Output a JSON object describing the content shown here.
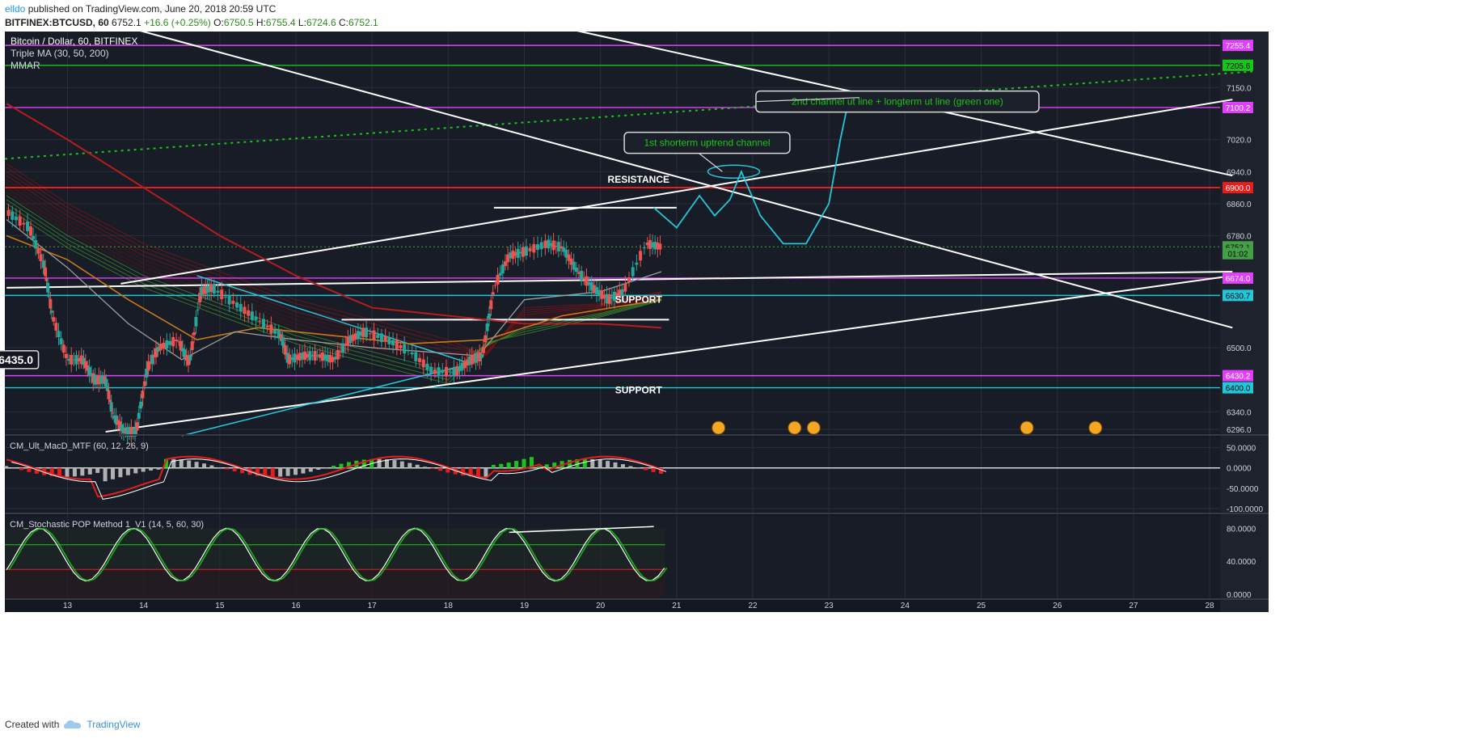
{
  "header": {
    "author": "elldo",
    "published": "published on TradingView.com, June 20, 2018 20:59 UTC",
    "symbol": "BITFINEX:BTCUSD, 60",
    "last": "6752.1",
    "change": "+16.6 (+0.25%)",
    "o_label": "O:",
    "o": "6750.5",
    "h_label": "H:",
    "h": "6755.4",
    "l_label": "L:",
    "l": "6724.6",
    "c_label": "C:",
    "c": "6752.1"
  },
  "footer": {
    "created_with": "Created with",
    "brand": "TradingView"
  },
  "chart_data": {
    "type": "candlestick",
    "title": "Bitcoin / Dollar, 60, BITFINEX",
    "overlays": [
      "Triple MA (30, 50, 200)",
      "MMAR"
    ],
    "x_ticks": [
      "13",
      "14",
      "15",
      "16",
      "17",
      "18",
      "19",
      "20",
      "21",
      "22",
      "23",
      "24",
      "25",
      "26",
      "27",
      "28"
    ],
    "y_ticks": [
      7150,
      7020,
      6940,
      6860,
      6780,
      6500,
      6340,
      6296
    ],
    "y_tick_labels": [
      "7150.0",
      "7020.0",
      "6940.0",
      "6860.0",
      "6780.0",
      "6500.0",
      "6340.0",
      "6296.0"
    ],
    "ylim": [
      6284,
      7290
    ],
    "price_series": [
      [
        12.2,
        6840
      ],
      [
        12.5,
        6800
      ],
      [
        12.7,
        6700
      ],
      [
        12.8,
        6580
      ],
      [
        13.0,
        6470
      ],
      [
        13.2,
        6470
      ],
      [
        13.35,
        6420
      ],
      [
        13.5,
        6420
      ],
      [
        13.6,
        6330
      ],
      [
        13.75,
        6290
      ],
      [
        13.9,
        6290
      ],
      [
        14.05,
        6450
      ],
      [
        14.2,
        6500
      ],
      [
        14.45,
        6520
      ],
      [
        14.6,
        6460
      ],
      [
        14.75,
        6640
      ],
      [
        14.9,
        6650
      ],
      [
        15.2,
        6610
      ],
      [
        15.5,
        6570
      ],
      [
        15.8,
        6530
      ],
      [
        15.9,
        6470
      ],
      [
        16.1,
        6480
      ],
      [
        16.3,
        6480
      ],
      [
        16.5,
        6470
      ],
      [
        16.7,
        6520
      ],
      [
        16.9,
        6540
      ],
      [
        17.2,
        6520
      ],
      [
        17.5,
        6490
      ],
      [
        17.8,
        6440
      ],
      [
        18.1,
        6440
      ],
      [
        18.3,
        6470
      ],
      [
        18.45,
        6480
      ],
      [
        18.6,
        6650
      ],
      [
        18.8,
        6730
      ],
      [
        19.0,
        6740
      ],
      [
        19.3,
        6760
      ],
      [
        19.5,
        6750
      ],
      [
        19.7,
        6690
      ],
      [
        19.9,
        6650
      ],
      [
        20.1,
        6620
      ],
      [
        20.3,
        6640
      ],
      [
        20.6,
        6760
      ],
      [
        20.8,
        6752
      ]
    ],
    "price_labels": [
      {
        "value": 7255.4,
        "text": "7255.4",
        "color": "#e040fb"
      },
      {
        "value": 7205.6,
        "text": "7205.6",
        "color": "#19c519"
      },
      {
        "value": 7100.2,
        "text": "7100.2",
        "color": "#e040fb"
      },
      {
        "value": 6900.0,
        "text": "6900.0",
        "color": "#e51d1d"
      },
      {
        "value": 6752.1,
        "text": "6752.1",
        "color": "#43a047"
      },
      {
        "value": 6735.0,
        "text": "01:02",
        "color": "#43a047"
      },
      {
        "value": 6674.0,
        "text": "6674.0",
        "color": "#e040fb"
      },
      {
        "value": 6630.7,
        "text": "6630.7",
        "color": "#26c6da"
      },
      {
        "value": 6430.2,
        "text": "6430.2",
        "color": "#e040fb"
      },
      {
        "value": 6400.0,
        "text": "6400.0",
        "color": "#26c6da"
      }
    ],
    "horizontal_levels": [
      {
        "value": 7255.4,
        "color": "#e040fb"
      },
      {
        "value": 7205.6,
        "color": "#19c519"
      },
      {
        "value": 7100.2,
        "color": "#e040fb"
      },
      {
        "value": 6900.0,
        "color": "#e51d1d"
      },
      {
        "value": 6674.0,
        "color": "#e040fb"
      },
      {
        "value": 6630.7,
        "color": "#26c6da"
      },
      {
        "value": 6430.2,
        "color": "#e040fb"
      },
      {
        "value": 6400.0,
        "color": "#26c6da"
      }
    ],
    "annotations": [
      {
        "text": "RESISTANCE",
        "x": 20.5,
        "y": 6912
      },
      {
        "text": "SUPPORT",
        "x": 20.5,
        "y": 6612
      },
      {
        "text": "SUPPORT",
        "x": 20.5,
        "y": 6386
      }
    ],
    "callouts": [
      {
        "text": "1st shorterm uptrend channel",
        "x": 21.4,
        "y": 7012,
        "color": "#19c519"
      },
      {
        "text": "2nd channel ut line + longterm ut line (green one)",
        "x": 23.9,
        "y": 7115,
        "color": "#19c519"
      }
    ],
    "marked_price": {
      "text": "6435.0",
      "x": 12.3,
      "y": 6470
    },
    "projection": [
      [
        20.7,
        6850
      ],
      [
        21.0,
        6800
      ],
      [
        21.3,
        6880
      ],
      [
        21.5,
        6830
      ],
      [
        21.7,
        6870
      ],
      [
        21.85,
        6940
      ],
      [
        22.1,
        6830
      ],
      [
        22.4,
        6760
      ],
      [
        22.7,
        6760
      ],
      [
        23.0,
        6860
      ],
      [
        23.15,
        7020
      ],
      [
        23.25,
        7110
      ]
    ],
    "macd": {
      "title": "CM_Ult_MacD_MTF (60, 12, 26, 9)",
      "y_ticks": [
        "50.0000",
        "0.0000",
        "-50.0000",
        "-100.0000"
      ],
      "ylim": [
        -110,
        75
      ]
    },
    "stochastic": {
      "title": "CM_Stochastic POP Method 1_V1 (14, 5, 60, 30)",
      "y_ticks": [
        "80.0000",
        "40.0000",
        "0.0000"
      ],
      "ylim": [
        -5,
        95
      ]
    },
    "grid": true
  }
}
